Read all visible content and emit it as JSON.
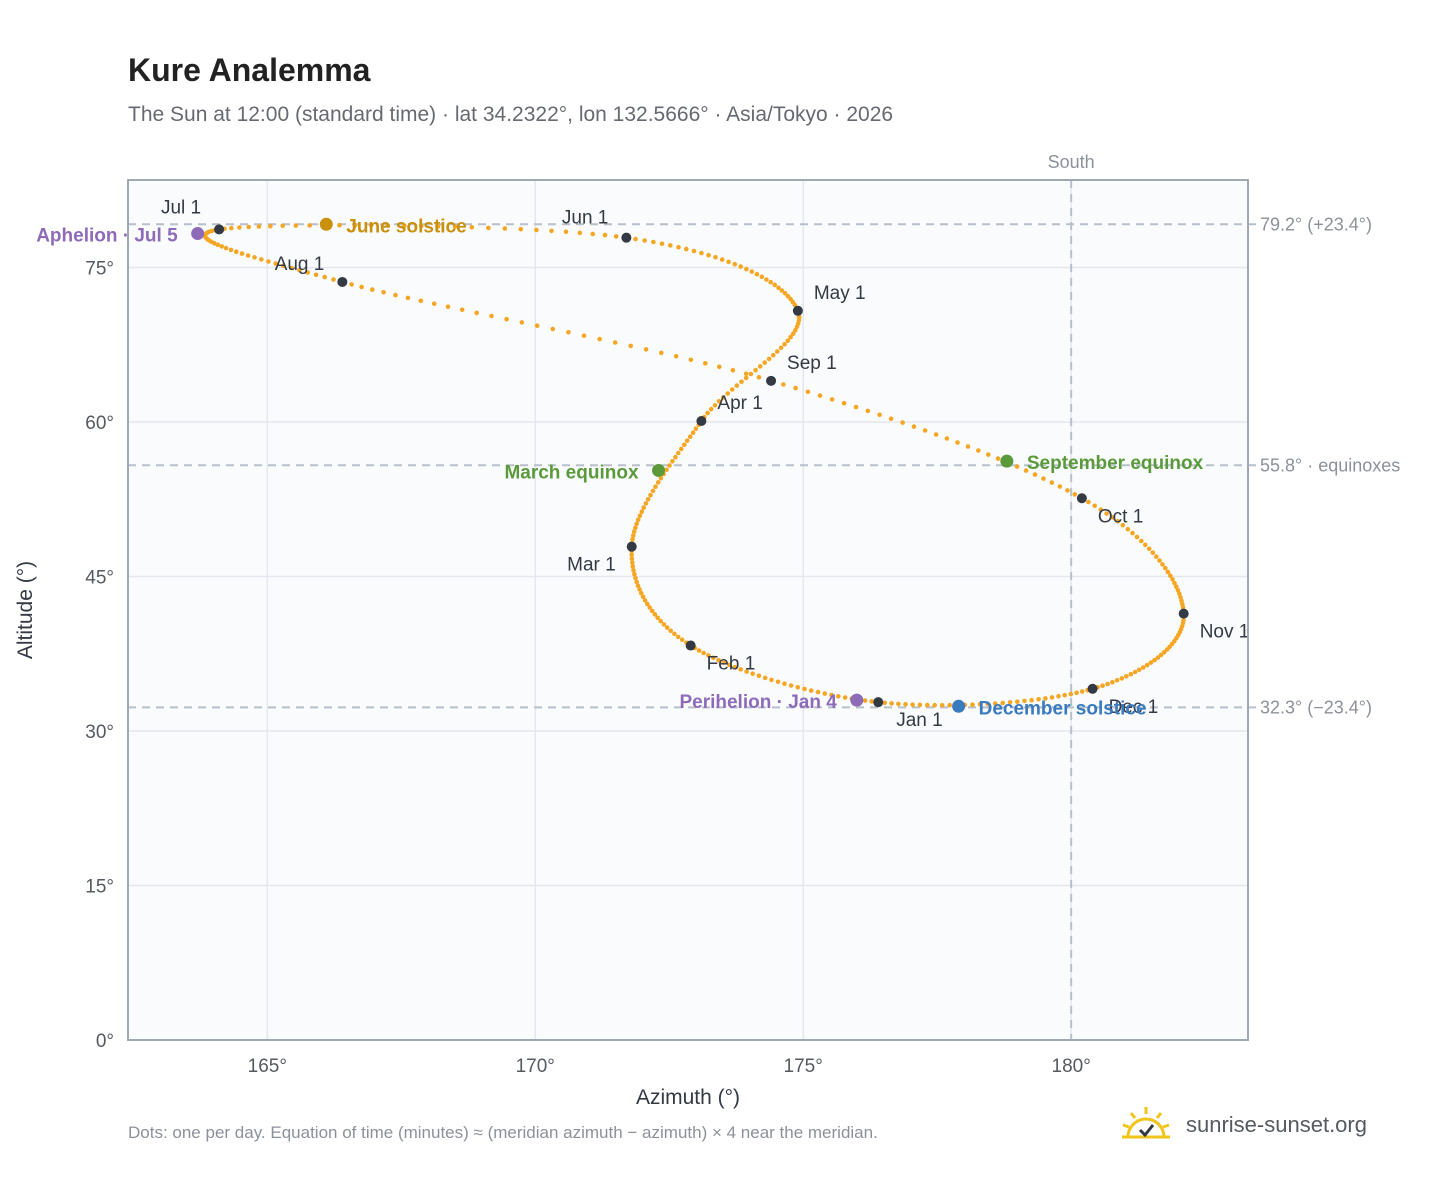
{
  "header": {
    "title": "Kure Analemma",
    "subtitle": "The Sun at 12:00 (standard time) · lat 34.2322°, lon 132.5666° · Asia/Tokyo · 2026"
  },
  "footer": {
    "note": "Dots: one per day. Equation of time (minutes) ≈ (meridian azimuth − azimuth) × 4 near the meridian.",
    "brand": "sunrise-sunset.org",
    "brand_icon": "sun-check-icon"
  },
  "chart_data": {
    "type": "scatter",
    "xlabel": "Azimuth (°)",
    "ylabel": "Altitude (°)",
    "xlim": [
      162.4,
      183.3
    ],
    "ylim": [
      0,
      83.5
    ],
    "xticks": [
      165,
      170,
      175,
      180
    ],
    "yticks": [
      0,
      15,
      30,
      45,
      60,
      75
    ],
    "grid": true,
    "colors": {
      "curve": "#f5a623",
      "month_marker": "#333a44",
      "equinox": "#5a9a3a",
      "june_solstice": "#c9900c",
      "december_solstice": "#3a7abf",
      "apsis": "#8e6bb8",
      "reference_line": "#b8c0cc",
      "plot_background": "#f9fbfd",
      "plot_border": "#a0a8b4"
    },
    "reference_lines": {
      "vertical": {
        "x": 180,
        "label": "South"
      },
      "horizontal": [
        {
          "y": 79.2,
          "label": "79.2° (+23.4°)"
        },
        {
          "y": 55.8,
          "label": "55.8° · equinoxes"
        },
        {
          "y": 32.3,
          "label": "32.3° (−23.4°)"
        }
      ]
    },
    "month_markers": [
      {
        "label": "Jan 1",
        "x": 176.4,
        "y": 32.8
      },
      {
        "label": "Feb 1",
        "x": 172.9,
        "y": 38.3
      },
      {
        "label": "Mar 1",
        "x": 171.8,
        "y": 47.9
      },
      {
        "label": "Apr 1",
        "x": 173.1,
        "y": 60.1
      },
      {
        "label": "May 1",
        "x": 174.9,
        "y": 70.8
      },
      {
        "label": "Jun 1",
        "x": 171.7,
        "y": 77.9
      },
      {
        "label": "Jul 1",
        "x": 164.1,
        "y": 78.7
      },
      {
        "label": "Aug 1",
        "x": 166.4,
        "y": 73.6
      },
      {
        "label": "Sep 1",
        "x": 174.4,
        "y": 64.0
      },
      {
        "label": "Oct 1",
        "x": 180.2,
        "y": 52.6
      },
      {
        "label": "Nov 1",
        "x": 182.1,
        "y": 41.4
      },
      {
        "label": "Dec 1",
        "x": 180.4,
        "y": 34.1
      }
    ],
    "events": [
      {
        "label": "March equinox",
        "x": 172.3,
        "y": 55.3,
        "kind": "equinox"
      },
      {
        "label": "September equinox",
        "x": 178.8,
        "y": 56.2,
        "kind": "equinox"
      },
      {
        "label": "June solstice",
        "x": 166.1,
        "y": 79.2,
        "kind": "june_solstice"
      },
      {
        "label": "December solstice",
        "x": 177.9,
        "y": 32.4,
        "kind": "december_solstice"
      },
      {
        "label": "Aphelion · Jul 5",
        "x": 163.7,
        "y": 78.3,
        "kind": "apsis"
      },
      {
        "label": "Perihelion · Jan 4",
        "x": 176.0,
        "y": 33.0,
        "kind": "apsis"
      }
    ]
  }
}
